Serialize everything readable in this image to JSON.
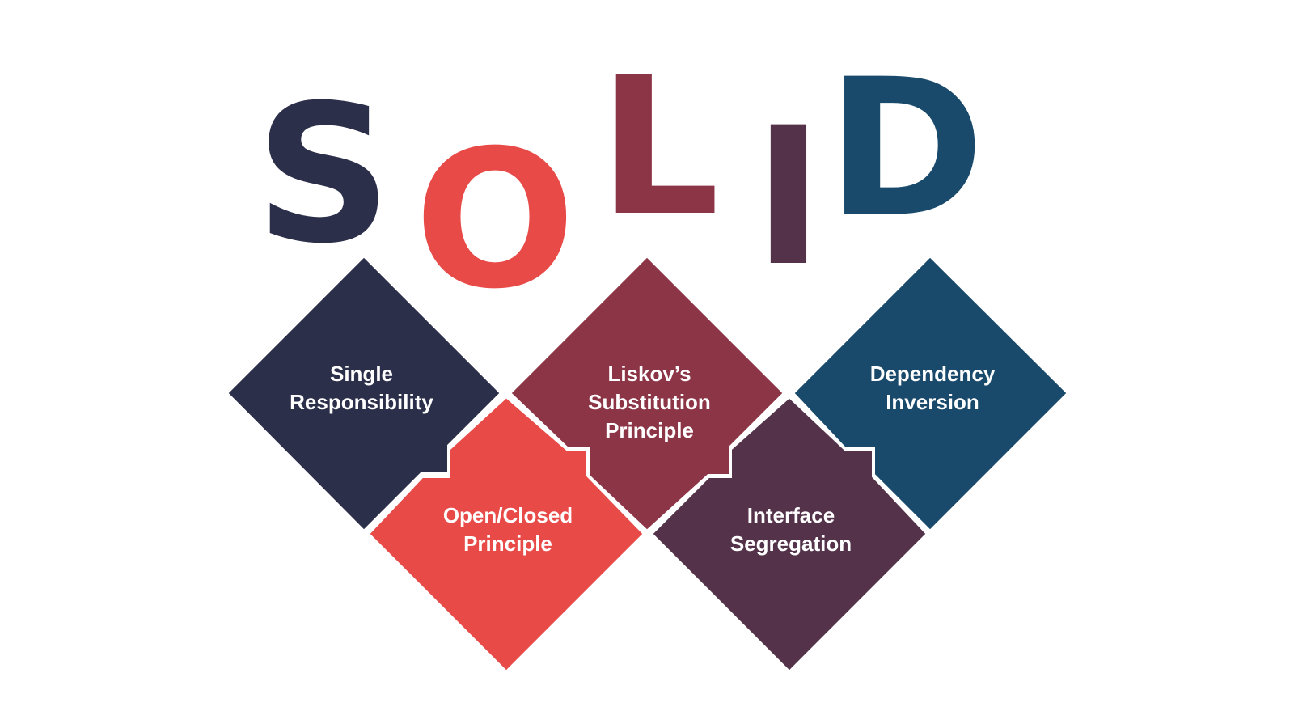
{
  "title_letters": [
    {
      "letter": "S",
      "color": "#2c2f4a"
    },
    {
      "letter": "O",
      "color": "#e84a47"
    },
    {
      "letter": "L",
      "color": "#8c3547"
    },
    {
      "letter": "I",
      "color": "#54334a"
    },
    {
      "letter": "D",
      "color": "#1a4a6b"
    }
  ],
  "principles": [
    {
      "name": "single-responsibility",
      "line1": "Single",
      "line2": "Responsibility",
      "line3": "",
      "color": "#2c2f4a"
    },
    {
      "name": "open-closed",
      "line1": "Open/Closed",
      "line2": "Principle",
      "line3": "",
      "color": "#e84a47"
    },
    {
      "name": "liskov-substitution",
      "line1": "Liskov’s",
      "line2": "Substitution",
      "line3": "Principle",
      "color": "#8c3547"
    },
    {
      "name": "interface-segregation",
      "line1": "Interface",
      "line2": "Segregation",
      "line3": "",
      "color": "#54334a"
    },
    {
      "name": "dependency-inversion",
      "line1": "Dependency",
      "line2": "Inversion",
      "line3": "",
      "color": "#1a4a6b"
    }
  ]
}
